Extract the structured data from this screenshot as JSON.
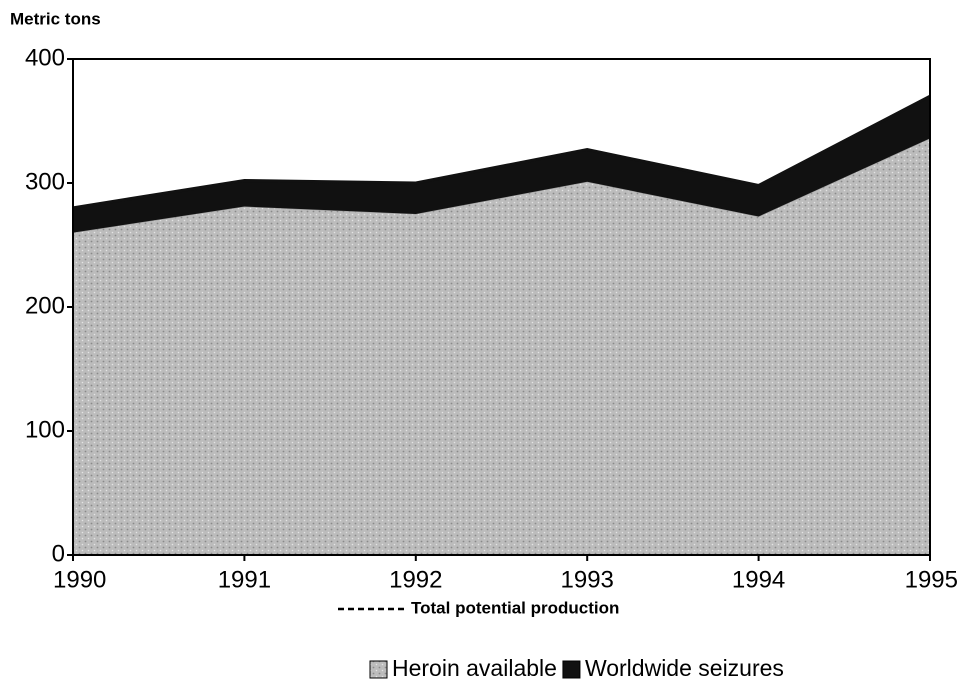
{
  "chart_data": {
    "type": "area",
    "stacked": true,
    "y_label": "Metric tons",
    "note": "Total potential production",
    "x": [
      1990,
      1991,
      1992,
      1993,
      1994,
      1995
    ],
    "xlim": [
      1990,
      1995
    ],
    "xticks": [
      1990,
      1991,
      1992,
      1993,
      1994,
      1995
    ],
    "ylim": [
      0,
      400
    ],
    "yticks": [
      0,
      100,
      200,
      300,
      400
    ],
    "grid": false,
    "legend": "bottom",
    "series": [
      {
        "name": "Heroin available",
        "color": "#b4b4b4",
        "values": [
          260,
          281,
          275,
          301,
          273,
          336
        ]
      },
      {
        "name": "Worldwide seizures",
        "color": "#111111",
        "values": [
          20,
          21,
          25,
          26,
          25,
          34
        ]
      }
    ]
  }
}
